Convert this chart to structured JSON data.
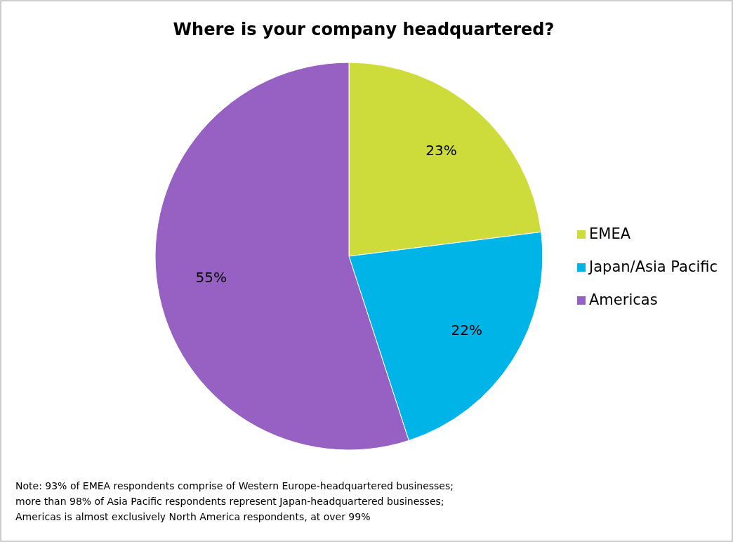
{
  "chart_data": {
    "type": "pie",
    "title": "Where is your company headquartered?",
    "categories": [
      "EMEA",
      "Japan/Asia Pacific",
      "Americas"
    ],
    "values": [
      23,
      22,
      55
    ],
    "colors": [
      "#cddb3b",
      "#00b4e8",
      "#9661c3"
    ],
    "value_labels": [
      "23%",
      "22%",
      "55%"
    ],
    "legend": "right",
    "annotations": [
      "Note: 93% of EMEA respondents comprise of Western Europe-headquartered businesses;",
      "more than 98% of Asia Pacific respondents represent Japan-headquartered businesses;",
      "Americas is almost exclusively North America respondents, at over 99%"
    ]
  }
}
